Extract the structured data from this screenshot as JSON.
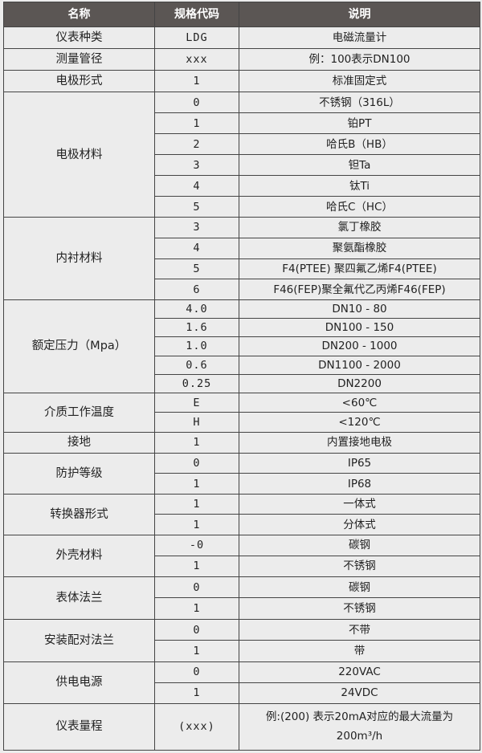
{
  "header": {
    "name": "名称",
    "code": "规格代码",
    "desc": "说明"
  },
  "groups": [
    {
      "name": "仪表种类",
      "rows": [
        {
          "code": "LDG",
          "desc": "电磁流量计"
        }
      ]
    },
    {
      "name": "测量管径",
      "rows": [
        {
          "code": "xxx",
          "desc": "例：100表示DN100"
        }
      ]
    },
    {
      "name": "电极形式",
      "rows": [
        {
          "code": "1",
          "desc": "标准固定式"
        }
      ]
    },
    {
      "name": "电极材料",
      "rows": [
        {
          "code": "0",
          "desc": "不锈钢（316L）"
        },
        {
          "code": "1",
          "desc": "铂PT"
        },
        {
          "code": "2",
          "desc": "哈氏B（HB）"
        },
        {
          "code": "3",
          "desc": "钽Ta"
        },
        {
          "code": "4",
          "desc": "钛Ti"
        },
        {
          "code": "5",
          "desc": "哈氏C（HC）"
        }
      ]
    },
    {
      "name": "内衬材料",
      "rows": [
        {
          "code": "3",
          "desc": "氯丁橡胶"
        },
        {
          "code": "4",
          "desc": "聚氨酯橡胶"
        },
        {
          "code": "5",
          "desc": "F4(PTEE) 聚四氟乙烯F4(PTEE)"
        },
        {
          "code": "6",
          "desc": "F46(FEP)聚全氟代乙丙烯F46(FEP)"
        }
      ]
    },
    {
      "name": "额定压力（Mpa）",
      "rows": [
        {
          "code": "4.0",
          "desc": "DN10 - 80"
        },
        {
          "code": "1.6",
          "desc": "DN100 - 150"
        },
        {
          "code": "1.0",
          "desc": "DN200 - 1000"
        },
        {
          "code": "0.6",
          "desc": "DN1100 - 2000"
        },
        {
          "code": "0.25",
          "desc": "DN2200"
        }
      ]
    },
    {
      "name": "介质工作温度",
      "rows": [
        {
          "code": "E",
          "desc": "<60℃"
        },
        {
          "code": "H",
          "desc": "<120℃"
        }
      ]
    },
    {
      "name": "接地",
      "rows": [
        {
          "code": "1",
          "desc": "内置接地电极"
        }
      ]
    },
    {
      "name": "防护等级",
      "rows": [
        {
          "code": "0",
          "desc": "IP65"
        },
        {
          "code": "1",
          "desc": "IP68"
        }
      ]
    },
    {
      "name": "转换器形式",
      "rows": [
        {
          "code": "1",
          "desc": "一体式"
        },
        {
          "code": "1",
          "desc": "分体式"
        }
      ]
    },
    {
      "name": "外壳材料",
      "rows": [
        {
          "code": "-0",
          "desc": "碳钢"
        },
        {
          "code": "1",
          "desc": "不锈钢"
        }
      ]
    },
    {
      "name": "表体法兰",
      "rows": [
        {
          "code": "0",
          "desc": "碳钢"
        },
        {
          "code": "1",
          "desc": "不锈钢"
        }
      ]
    },
    {
      "name": "安装配对法兰",
      "rows": [
        {
          "code": "0",
          "desc": "不带"
        },
        {
          "code": "1",
          "desc": "带"
        }
      ]
    },
    {
      "name": "供电电源",
      "rows": [
        {
          "code": "0",
          "desc": "220VAC"
        },
        {
          "code": "1",
          "desc": "24VDC"
        }
      ]
    },
    {
      "name": "仪表量程",
      "rows": [
        {
          "code": "(xxx)",
          "desc": "例:(200) 表示20mA对应的最大流量为200m³/h"
        }
      ]
    }
  ]
}
